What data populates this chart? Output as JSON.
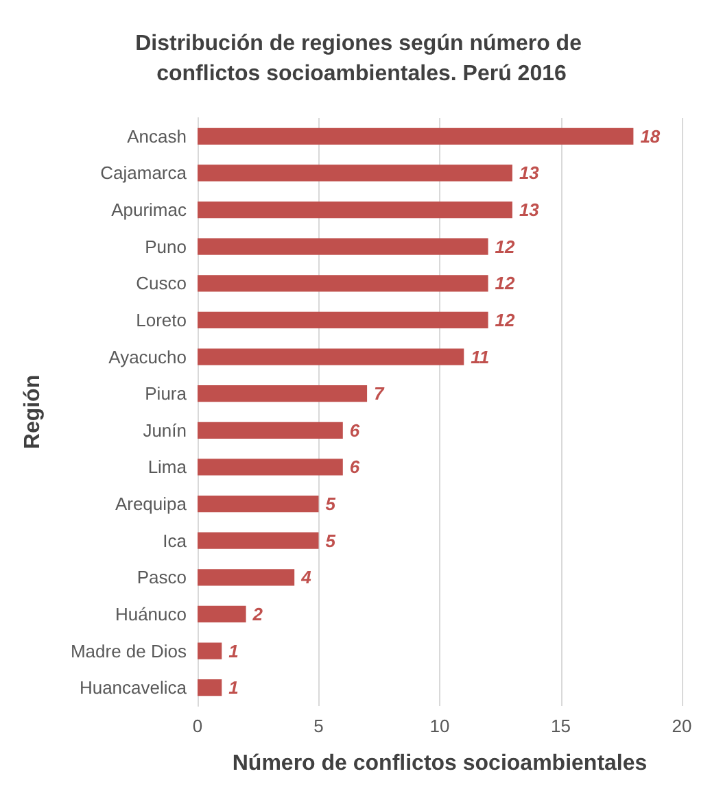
{
  "chart_data": {
    "type": "bar",
    "orientation": "horizontal",
    "title": "Distribución de regiones según número de conflictos socioambientales. Perú 2016",
    "xlabel": "Número de conflictos socioambientales",
    "ylabel": "Región",
    "categories": [
      "Ancash",
      "Cajamarca",
      "Apurimac",
      "Puno",
      "Cusco",
      "Loreto",
      "Ayacucho",
      "Piura",
      "Junín",
      "Lima",
      "Arequipa",
      "Ica",
      "Pasco",
      "Huánuco",
      "Madre de Dios",
      "Huancavelica"
    ],
    "values": [
      18,
      13,
      13,
      12,
      12,
      12,
      11,
      7,
      6,
      6,
      5,
      5,
      4,
      2,
      1,
      1
    ],
    "color": "#c0504d",
    "xlim": [
      0,
      20
    ],
    "xticks": [
      0,
      5,
      10,
      15,
      20
    ],
    "grid": "x",
    "data_labels": true
  }
}
